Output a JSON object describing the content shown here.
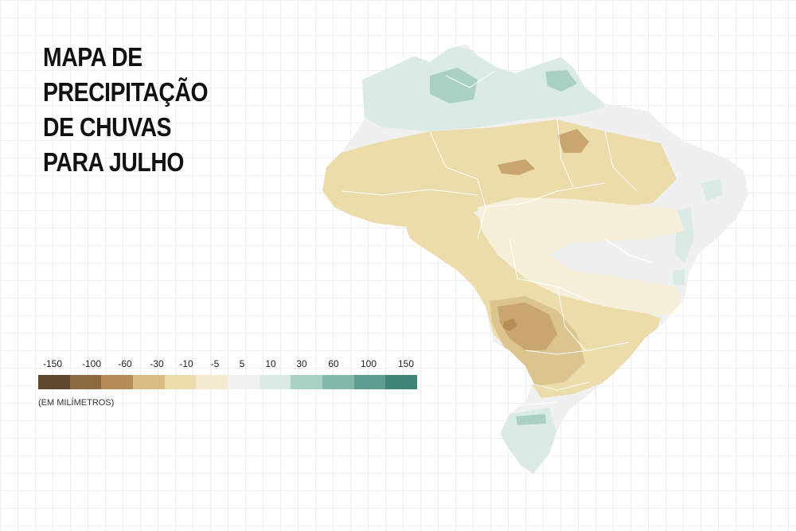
{
  "title_lines": [
    "MAPA DE",
    "PRECIPITAÇÃO",
    "DE CHUVAS",
    "PARA JULHO"
  ],
  "legend": {
    "labels": [
      "-150",
      "-100",
      "-60",
      "-30",
      "-10",
      "-5",
      "5",
      "10",
      "30",
      "60",
      "100",
      "150"
    ],
    "colors": [
      "#5f4a2f",
      "#8a6a3e",
      "#b58d55",
      "#d9bd84",
      "#ebdcaa",
      "#f3ead0",
      "#f1f1f1",
      "#d9ebe4",
      "#a9d0c3",
      "#84b8aa",
      "#5e9d90",
      "#3e8576"
    ],
    "unit": "(EM MILÍMETROS)"
  },
  "map_colors": {
    "land": "#f0f0f0",
    "border": "#ffffff",
    "wet_light": "#d9ebe4",
    "wet_mid": "#a9d0c3",
    "wet_dark": "#84b8aa",
    "dry_very_light": "#f6efd9",
    "dry_light": "#ebdcaa",
    "dry_mid": "#dcc48e",
    "dry_strong": "#c9a670",
    "dry_darkest": "#b58d55"
  }
}
